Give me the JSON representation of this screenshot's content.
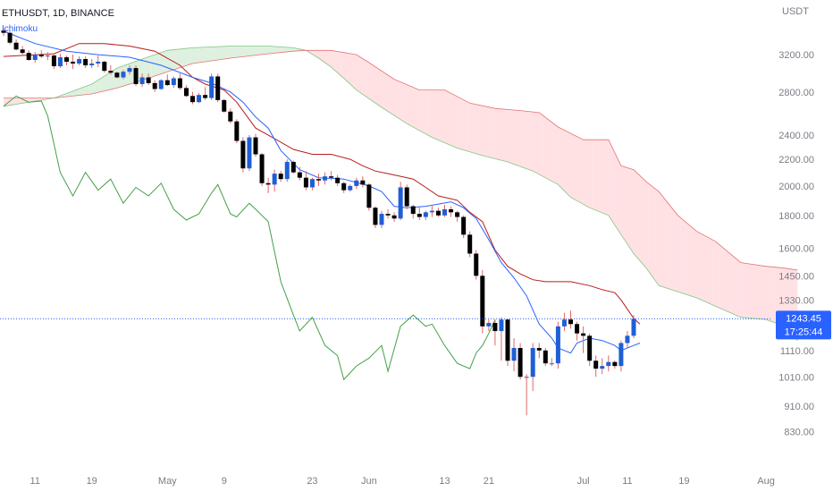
{
  "header": {
    "symbol": "ETHUSDT, 1D, BINANCE",
    "indicator": "Ichimoku"
  },
  "price_axis": {
    "currency": "USDT"
  },
  "last_price": {
    "value": "1243.45",
    "countdown": "17:25:44"
  },
  "colors": {
    "up_candle": "#1f5fd6",
    "down_candle": "#000000",
    "wick": "#e06666",
    "conversion_line": "#2962ff",
    "base_line": "#b71c1c",
    "lagging_span": "#43a047",
    "cloud_bull": "#c8e6c9",
    "cloud_bear": "#ffcdd2",
    "price_tag": "#2962ff"
  },
  "chart_data": {
    "type": "candlestick",
    "title": "ETHUSDT, 1D, BINANCE",
    "y_axis": {
      "scale": "log",
      "ticks": [
        "3200.00",
        "2800.00",
        "2400.00",
        "2200.00",
        "2000.00",
        "1800.00",
        "1600.00",
        "1450.00",
        "1330.00",
        "1243.45",
        "1110.00",
        "1010.00",
        "910.00",
        "830.00"
      ],
      "range": [
        780,
        3700
      ]
    },
    "x_axis": {
      "ticks": [
        "11",
        "19",
        "May",
        "9",
        "23",
        "Jun",
        "13",
        "21",
        "Jul",
        "11",
        "19",
        "Aug"
      ]
    },
    "candles_ohlc": [
      [
        3490,
        3520,
        3420,
        3460
      ],
      [
        3460,
        3480,
        3320,
        3340
      ],
      [
        3340,
        3380,
        3250,
        3260
      ],
      [
        3260,
        3300,
        3200,
        3220
      ],
      [
        3220,
        3250,
        3130,
        3140
      ],
      [
        3140,
        3230,
        3110,
        3200
      ],
      [
        3200,
        3250,
        3160,
        3180
      ],
      [
        3180,
        3230,
        3140,
        3190
      ],
      [
        3190,
        3220,
        3040,
        3070
      ],
      [
        3070,
        3210,
        3050,
        3170
      ],
      [
        3170,
        3190,
        3080,
        3120
      ],
      [
        3120,
        3200,
        3040,
        3100
      ],
      [
        3100,
        3180,
        3080,
        3150
      ],
      [
        3150,
        3180,
        3050,
        3080
      ],
      [
        3080,
        3150,
        3050,
        3100
      ],
      [
        3100,
        3190,
        3060,
        3120
      ],
      [
        3120,
        3130,
        3000,
        3020
      ],
      [
        3020,
        3080,
        2980,
        3000
      ],
      [
        3000,
        3010,
        2940,
        2950
      ],
      [
        2950,
        3030,
        2930,
        3010
      ],
      [
        3010,
        3080,
        2980,
        3050
      ],
      [
        3050,
        3080,
        2860,
        2880
      ],
      [
        2880,
        2990,
        2850,
        2950
      ],
      [
        2950,
        2990,
        2870,
        2890
      ],
      [
        2890,
        2920,
        2800,
        2830
      ],
      [
        2830,
        2930,
        2820,
        2920
      ],
      [
        2920,
        2980,
        2860,
        2870
      ],
      [
        2870,
        2960,
        2840,
        2940
      ],
      [
        2940,
        2990,
        2820,
        2840
      ],
      [
        2840,
        2870,
        2750,
        2760
      ],
      [
        2760,
        2800,
        2680,
        2700
      ],
      [
        2700,
        2790,
        2690,
        2770
      ],
      [
        2770,
        2850,
        2720,
        2740
      ],
      [
        2740,
        2990,
        2720,
        2960
      ],
      [
        2960,
        2990,
        2700,
        2720
      ],
      [
        2720,
        2730,
        2600,
        2610
      ],
      [
        2610,
        2640,
        2500,
        2520
      ],
      [
        2520,
        2540,
        2330,
        2350
      ],
      [
        2350,
        2380,
        2100,
        2130
      ],
      [
        2130,
        2400,
        2110,
        2380
      ],
      [
        2380,
        2410,
        2220,
        2240
      ],
      [
        2240,
        2250,
        2000,
        2020
      ],
      [
        2020,
        2060,
        1950,
        2010
      ],
      [
        2010,
        2120,
        1960,
        2090
      ],
      [
        2090,
        2110,
        2030,
        2050
      ],
      [
        2050,
        2200,
        2030,
        2180
      ],
      [
        2180,
        2190,
        2090,
        2100
      ],
      [
        2100,
        2140,
        2040,
        2060
      ],
      [
        2060,
        2110,
        1970,
        1990
      ],
      [
        1990,
        2060,
        1970,
        2050
      ],
      [
        2050,
        2090,
        2000,
        2040
      ],
      [
        2040,
        2100,
        2010,
        2070
      ],
      [
        2070,
        2110,
        2040,
        2060
      ],
      [
        2060,
        2080,
        2000,
        2020
      ],
      [
        2020,
        2030,
        1950,
        1970
      ],
      [
        1970,
        2010,
        1960,
        2000
      ],
      [
        2000,
        2060,
        1980,
        2040
      ],
      [
        2040,
        2070,
        1990,
        2010
      ],
      [
        2010,
        2020,
        1830,
        1850
      ],
      [
        1850,
        1860,
        1720,
        1740
      ],
      [
        1740,
        1830,
        1720,
        1810
      ],
      [
        1810,
        1840,
        1780,
        1800
      ],
      [
        1800,
        1820,
        1760,
        1780
      ],
      [
        1780,
        2030,
        1770,
        1990
      ],
      [
        1990,
        2010,
        1840,
        1860
      ],
      [
        1860,
        1870,
        1780,
        1810
      ],
      [
        1810,
        1860,
        1770,
        1790
      ],
      [
        1790,
        1830,
        1770,
        1820
      ],
      [
        1820,
        1870,
        1790,
        1830
      ],
      [
        1830,
        1850,
        1790,
        1800
      ],
      [
        1800,
        1870,
        1790,
        1840
      ],
      [
        1840,
        1860,
        1790,
        1820
      ],
      [
        1820,
        1830,
        1760,
        1790
      ],
      [
        1790,
        1800,
        1660,
        1680
      ],
      [
        1680,
        1700,
        1550,
        1570
      ],
      [
        1570,
        1590,
        1430,
        1450
      ],
      [
        1450,
        1480,
        1180,
        1210
      ],
      [
        1210,
        1240,
        1190,
        1225
      ],
      [
        1225,
        1240,
        1130,
        1190
      ],
      [
        1190,
        1250,
        1070,
        1240
      ],
      [
        1240,
        1240,
        1050,
        1070
      ],
      [
        1070,
        1160,
        1030,
        1120
      ],
      [
        1120,
        1140,
        1000,
        1010
      ],
      [
        1010,
        1020,
        880,
        1010
      ],
      [
        1010,
        1140,
        960,
        1120
      ],
      [
        1120,
        1140,
        1080,
        1110
      ],
      [
        1110,
        1120,
        1050,
        1060
      ],
      [
        1060,
        1080,
        1050,
        1060
      ],
      [
        1060,
        1230,
        1040,
        1210
      ],
      [
        1210,
        1270,
        1190,
        1240
      ],
      [
        1240,
        1280,
        1200,
        1220
      ],
      [
        1220,
        1230,
        1150,
        1180
      ],
      [
        1180,
        1210,
        1100,
        1170
      ],
      [
        1170,
        1180,
        1050,
        1070
      ],
      [
        1070,
        1090,
        1010,
        1040
      ],
      [
        1040,
        1080,
        1020,
        1050
      ],
      [
        1050,
        1090,
        1030,
        1065
      ],
      [
        1065,
        1070,
        1040,
        1050
      ],
      [
        1050,
        1150,
        1030,
        1140
      ],
      [
        1140,
        1190,
        1120,
        1170
      ],
      [
        1170,
        1260,
        1160,
        1243.45
      ]
    ],
    "conversion_line": [
      [
        0,
        3480
      ],
      [
        5,
        3330
      ],
      [
        10,
        3240
      ],
      [
        15,
        3200
      ],
      [
        20,
        3170
      ],
      [
        25,
        3080
      ],
      [
        30,
        2950
      ],
      [
        33,
        2890
      ],
      [
        36,
        2800
      ],
      [
        38,
        2700
      ],
      [
        40,
        2560
      ],
      [
        42,
        2460
      ],
      [
        44,
        2270
      ],
      [
        47,
        2120
      ],
      [
        50,
        2060
      ],
      [
        54,
        2050
      ],
      [
        58,
        2000
      ],
      [
        60,
        1960
      ],
      [
        62,
        1860
      ],
      [
        64,
        1850
      ],
      [
        67,
        1860
      ],
      [
        71,
        1890
      ],
      [
        73,
        1850
      ],
      [
        75,
        1780
      ],
      [
        77,
        1650
      ],
      [
        79,
        1520
      ],
      [
        81,
        1440
      ],
      [
        83,
        1350
      ],
      [
        85,
        1220
      ],
      [
        87,
        1160
      ],
      [
        88,
        1120
      ],
      [
        90,
        1100
      ],
      [
        91,
        1140
      ],
      [
        93,
        1160
      ],
      [
        95,
        1150
      ],
      [
        97,
        1130
      ],
      [
        98,
        1110
      ],
      [
        99,
        1120
      ],
      [
        100,
        1130
      ],
      [
        101,
        1140
      ]
    ],
    "base_line": [
      [
        0,
        3180
      ],
      [
        8,
        3210
      ],
      [
        12,
        3330
      ],
      [
        16,
        3330
      ],
      [
        20,
        3300
      ],
      [
        24,
        3240
      ],
      [
        28,
        3080
      ],
      [
        30,
        2950
      ],
      [
        32,
        2880
      ],
      [
        35,
        2820
      ],
      [
        37,
        2700
      ],
      [
        40,
        2460
      ],
      [
        43,
        2370
      ],
      [
        46,
        2280
      ],
      [
        49,
        2240
      ],
      [
        52,
        2240
      ],
      [
        55,
        2200
      ],
      [
        57,
        2150
      ],
      [
        59,
        2110
      ],
      [
        61,
        2090
      ],
      [
        63,
        2070
      ],
      [
        65,
        2050
      ],
      [
        67,
        1990
      ],
      [
        69,
        1930
      ],
      [
        72,
        1900
      ],
      [
        74,
        1820
      ],
      [
        76,
        1760
      ],
      [
        78,
        1590
      ],
      [
        80,
        1500
      ],
      [
        82,
        1460
      ],
      [
        84,
        1430
      ],
      [
        86,
        1420
      ],
      [
        90,
        1420
      ],
      [
        93,
        1400
      ],
      [
        95,
        1380
      ],
      [
        97,
        1365
      ],
      [
        98,
        1330
      ],
      [
        100,
        1245
      ],
      [
        101,
        1220
      ]
    ],
    "lagging_span": [
      [
        0,
        2660
      ],
      [
        2,
        2760
      ],
      [
        4,
        2700
      ],
      [
        6,
        2710
      ],
      [
        7,
        2570
      ],
      [
        9,
        2100
      ],
      [
        11,
        1930
      ],
      [
        13,
        2100
      ],
      [
        15,
        1970
      ],
      [
        17,
        2050
      ],
      [
        19,
        1880
      ],
      [
        21,
        1990
      ],
      [
        23,
        1930
      ],
      [
        25,
        2020
      ],
      [
        27,
        1840
      ],
      [
        29,
        1770
      ],
      [
        31,
        1810
      ],
      [
        33,
        1950
      ],
      [
        34,
        2010
      ],
      [
        36,
        1810
      ],
      [
        37,
        1790
      ],
      [
        39,
        1880
      ],
      [
        40,
        1840
      ],
      [
        42,
        1760
      ],
      [
        44,
        1420
      ],
      [
        46,
        1260
      ],
      [
        47,
        1190
      ],
      [
        49,
        1250
      ],
      [
        51,
        1130
      ],
      [
        53,
        1090
      ],
      [
        54,
        1000
      ],
      [
        56,
        1050
      ],
      [
        58,
        1080
      ],
      [
        60,
        1130
      ],
      [
        61,
        1030
      ],
      [
        63,
        1210
      ],
      [
        65,
        1260
      ],
      [
        67,
        1210
      ],
      [
        68,
        1220
      ],
      [
        70,
        1130
      ],
      [
        72,
        1060
      ],
      [
        74,
        1040
      ],
      [
        75,
        1100
      ],
      [
        76,
        1130
      ],
      [
        77,
        1180
      ],
      [
        78,
        1240
      ]
    ],
    "cloud_span_a": [
      [
        0,
        2660
      ],
      [
        8,
        2740
      ],
      [
        14,
        2880
      ],
      [
        18,
        3050
      ],
      [
        22,
        3150
      ],
      [
        26,
        3250
      ],
      [
        30,
        3280
      ],
      [
        36,
        3300
      ],
      [
        42,
        3300
      ],
      [
        46,
        3280
      ],
      [
        48,
        3250
      ],
      [
        50,
        3160
      ],
      [
        52,
        3060
      ],
      [
        54,
        2940
      ],
      [
        56,
        2820
      ],
      [
        60,
        2650
      ],
      [
        64,
        2500
      ],
      [
        68,
        2380
      ],
      [
        72,
        2290
      ],
      [
        76,
        2230
      ],
      [
        80,
        2180
      ],
      [
        84,
        2110
      ],
      [
        88,
        2010
      ],
      [
        90,
        1920
      ],
      [
        93,
        1850
      ],
      [
        96,
        1800
      ],
      [
        98,
        1680
      ],
      [
        100,
        1570
      ],
      [
        102,
        1490
      ],
      [
        104,
        1400
      ],
      [
        107,
        1370
      ],
      [
        110,
        1340
      ],
      [
        113,
        1300
      ],
      [
        117,
        1250
      ],
      [
        121,
        1240
      ],
      [
        124,
        1210
      ],
      [
        126,
        1150
      ]
    ],
    "cloud_span_b": [
      [
        0,
        2740
      ],
      [
        8,
        2740
      ],
      [
        14,
        2780
      ],
      [
        18,
        2840
      ],
      [
        22,
        2920
      ],
      [
        26,
        3010
      ],
      [
        30,
        3100
      ],
      [
        36,
        3160
      ],
      [
        42,
        3210
      ],
      [
        46,
        3240
      ],
      [
        48,
        3250
      ],
      [
        50,
        3250
      ],
      [
        52,
        3250
      ],
      [
        56,
        3200
      ],
      [
        58,
        3110
      ],
      [
        62,
        2930
      ],
      [
        66,
        2820
      ],
      [
        70,
        2820
      ],
      [
        74,
        2690
      ],
      [
        78,
        2640
      ],
      [
        82,
        2620
      ],
      [
        85,
        2600
      ],
      [
        88,
        2470
      ],
      [
        92,
        2360
      ],
      [
        96,
        2360
      ],
      [
        98,
        2150
      ],
      [
        100,
        2120
      ],
      [
        102,
        2030
      ],
      [
        104,
        1960
      ],
      [
        107,
        1800
      ],
      [
        110,
        1700
      ],
      [
        113,
        1640
      ],
      [
        117,
        1520
      ],
      [
        121,
        1500
      ],
      [
        124,
        1490
      ],
      [
        126,
        1480
      ]
    ]
  }
}
